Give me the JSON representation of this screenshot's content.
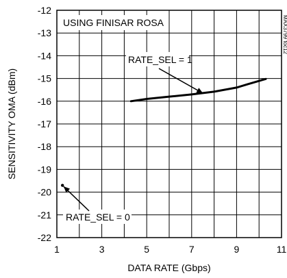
{
  "chart_data": {
    "type": "line",
    "title": "",
    "xlabel": "DATA RATE (Gbps)",
    "ylabel": "SENSITIVITY OMA (dBm)",
    "xlim": [
      1,
      11
    ],
    "ylim": [
      -22,
      -12
    ],
    "xticks": [
      1,
      3,
      5,
      7,
      9,
      11
    ],
    "yticks": [
      -12,
      -13,
      -14,
      -15,
      -16,
      -17,
      -18,
      -19,
      -20,
      -21,
      -22
    ],
    "grid": true,
    "series": [
      {
        "label": "RATE_SEL = 1",
        "x": [
          4.3,
          5,
          6,
          7,
          8,
          9,
          9.5,
          10.3
        ],
        "y": [
          -16.0,
          -15.9,
          -15.8,
          -15.7,
          -15.58,
          -15.4,
          -15.25,
          -15.02
        ]
      },
      {
        "label": "RATE_SEL = 0",
        "x": [
          1.25
        ],
        "y": [
          -19.7
        ]
      }
    ],
    "inset_label": "USING FINISAR ROSA",
    "figure_id": "MAX3799 toc12",
    "annotations": [
      {
        "text": "RATE_SEL = 1",
        "arrow_to": {
          "x": 7.5,
          "y": -15.65
        }
      },
      {
        "text": "RATE_SEL = 0",
        "arrow_to": {
          "x": 1.3,
          "y": -19.75
        }
      }
    ]
  }
}
